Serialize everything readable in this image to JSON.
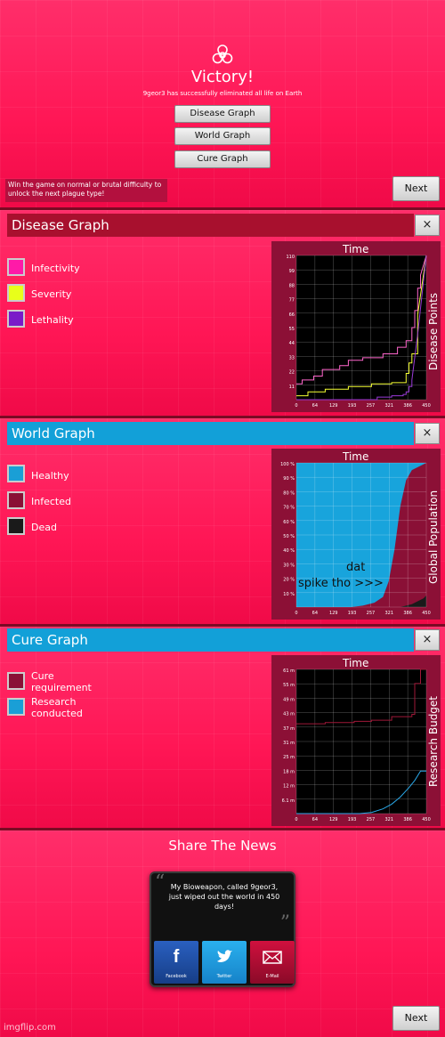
{
  "victory": {
    "title": "Victory!",
    "subtitle": "9geor3 has successfully eliminated all life on Earth",
    "buttons": [
      "Disease Graph",
      "World Graph",
      "Cure Graph"
    ],
    "unlock_text": "Win the game on normal or brutal difficulty to unlock the next plague type!",
    "next_label": "Next"
  },
  "disease": {
    "title": "Disease Graph",
    "close": "×",
    "legend": [
      {
        "label": "Infectivity",
        "color": "#ff1aa8"
      },
      {
        "label": "Severity",
        "color": "#e8ff1a"
      },
      {
        "label": "Lethality",
        "color": "#7a1ac8"
      }
    ],
    "chart_title": "Time",
    "y_title": "Disease Points"
  },
  "world": {
    "title": "World Graph",
    "close": "×",
    "legend": [
      {
        "label": "Healthy",
        "color": "#1a9fd6"
      },
      {
        "label": "Infected",
        "color": "#8a1036"
      },
      {
        "label": "Dead",
        "color": "#1a1a1a"
      }
    ],
    "chart_title": "Time",
    "y_title": "Global Population",
    "annotation_line1": "dat",
    "annotation_line2": "spike tho >>>"
  },
  "cure": {
    "title": "Cure Graph",
    "close": "×",
    "legend": [
      {
        "label": "Cure requirement",
        "color": "#8a1036"
      },
      {
        "label": "Research conducted",
        "color": "#1a9fd6"
      }
    ],
    "chart_title": "Time",
    "y_title": "Research Budget"
  },
  "share": {
    "title": "Share The News",
    "message": "My Bioweapon, called 9geor3, just wiped out the world in 450 days!",
    "buttons": [
      "Facebook",
      "Twitter",
      "E-Mail"
    ],
    "next_label": "Next",
    "watermark": "imgflip.com"
  },
  "chart_data": [
    {
      "type": "line",
      "title": "Time",
      "ylabel": "Disease Points",
      "x_ticks": [
        "0",
        "64",
        "129",
        "193",
        "257",
        "321",
        "386",
        "450"
      ],
      "y_ticks": [
        "110",
        "99",
        "88",
        "77",
        "66",
        "55",
        "44",
        "33",
        "22",
        "11"
      ],
      "ylim": [
        0,
        110
      ],
      "xlim": [
        0,
        450
      ],
      "grid": true,
      "series": [
        {
          "name": "Infectivity",
          "color": "#ff66cc",
          "x": [
            0,
            20,
            20,
            60,
            60,
            90,
            90,
            150,
            150,
            180,
            180,
            230,
            230,
            300,
            300,
            350,
            350,
            380,
            380,
            400,
            400,
            410,
            410,
            420,
            420,
            430,
            430,
            450
          ],
          "y": [
            12,
            12,
            15,
            15,
            18,
            18,
            23,
            23,
            26,
            26,
            30,
            30,
            32,
            32,
            35,
            35,
            40,
            40,
            45,
            45,
            55,
            55,
            68,
            68,
            85,
            85,
            95,
            110
          ]
        },
        {
          "name": "Severity",
          "color": "#f5ff33",
          "x": [
            0,
            40,
            40,
            100,
            100,
            180,
            180,
            260,
            260,
            330,
            330,
            380,
            380,
            390,
            390,
            400,
            400,
            420,
            420,
            450
          ],
          "y": [
            3,
            3,
            6,
            6,
            8,
            8,
            10,
            10,
            12,
            12,
            13,
            13,
            20,
            20,
            28,
            28,
            35,
            35,
            65,
            110
          ]
        },
        {
          "name": "Lethality",
          "color": "#9a3ad8",
          "x": [
            0,
            280,
            280,
            330,
            330,
            370,
            370,
            380,
            380,
            390,
            390,
            400,
            400,
            420,
            450
          ],
          "y": [
            0,
            0,
            2,
            2,
            3,
            3,
            4,
            4,
            6,
            6,
            10,
            10,
            15,
            50,
            110
          ]
        }
      ]
    },
    {
      "type": "area",
      "title": "Time",
      "ylabel": "Global Population",
      "x_ticks": [
        "0",
        "64",
        "129",
        "193",
        "257",
        "321",
        "386",
        "450"
      ],
      "y_ticks": [
        "100 %",
        "90 %",
        "80 %",
        "70 %",
        "60 %",
        "50 %",
        "40 %",
        "30 %",
        "20 %",
        "10 %"
      ],
      "ylim": [
        0,
        100
      ],
      "xlim": [
        0,
        450
      ],
      "grid": true,
      "series": [
        {
          "name": "Dead",
          "color": "#1a1a1a",
          "x": [
            0,
            360,
            380,
            400,
            420,
            440,
            450
          ],
          "y": [
            0,
            0,
            1,
            2,
            4,
            6,
            8
          ]
        },
        {
          "name": "Infected",
          "color": "#8a1036",
          "x": [
            0,
            190,
            230,
            270,
            300,
            320,
            340,
            360,
            380,
            400,
            420,
            450
          ],
          "y": [
            0,
            0,
            1,
            3,
            7,
            18,
            40,
            70,
            88,
            95,
            97,
            100
          ]
        }
      ]
    },
    {
      "type": "line",
      "title": "Time",
      "ylabel": "Research Budget",
      "x_ticks": [
        "0",
        "64",
        "129",
        "193",
        "257",
        "321",
        "386",
        "450"
      ],
      "y_ticks": [
        "61 m",
        "55 m",
        "49 m",
        "43 m",
        "37 m",
        "31 m",
        "25 m",
        "18 m",
        "12 m",
        "6.1 m"
      ],
      "ylim": [
        0,
        61
      ],
      "xlim": [
        0,
        450
      ],
      "grid": true,
      "series": [
        {
          "name": "Cure requirement",
          "color": "#a01838",
          "x": [
            0,
            100,
            100,
            200,
            200,
            260,
            260,
            330,
            330,
            400,
            400,
            410,
            410,
            430,
            430,
            450
          ],
          "y": [
            38,
            38,
            38.5,
            38.5,
            39,
            39,
            39.5,
            39.5,
            41,
            41,
            42,
            42,
            55,
            55,
            61,
            61
          ]
        },
        {
          "name": "Research conducted",
          "color": "#2aa8e8",
          "x": [
            0,
            220,
            260,
            300,
            330,
            360,
            390,
            410,
            430,
            450
          ],
          "y": [
            0,
            0,
            0.5,
            2,
            4,
            7,
            11,
            14,
            18,
            18
          ]
        }
      ]
    }
  ]
}
